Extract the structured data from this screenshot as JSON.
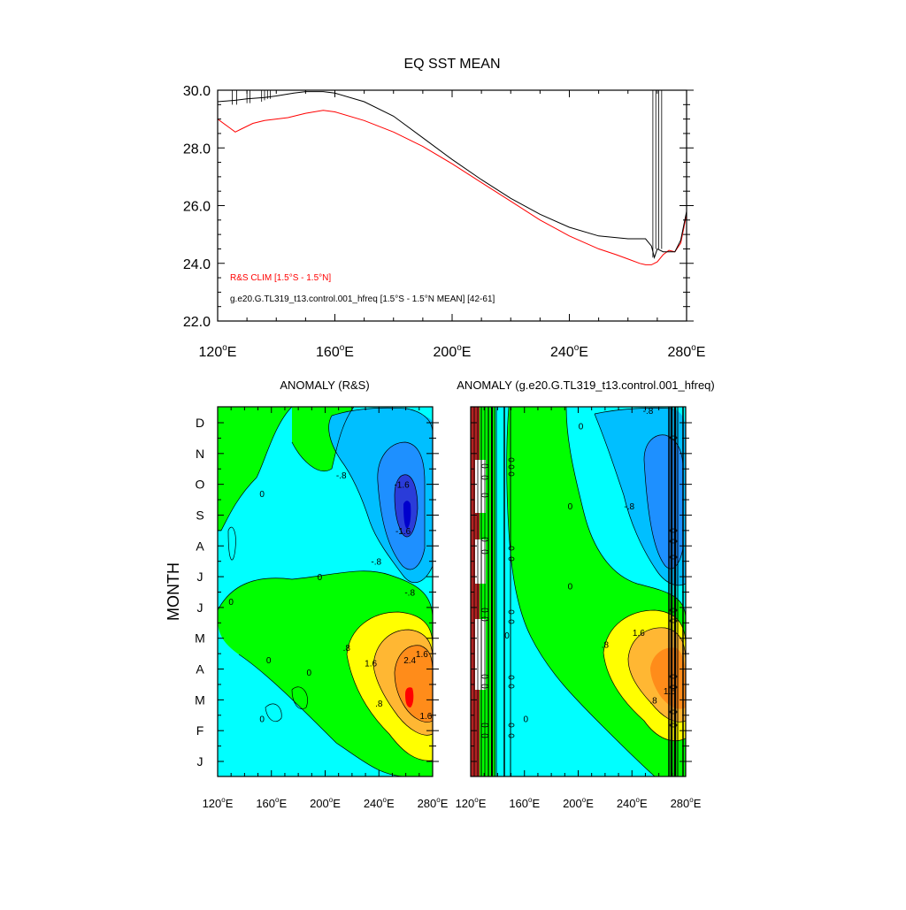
{
  "colors": {
    "obs": "#ff0000",
    "model": "#000000",
    "contour": "#000000",
    "fill_levels": [
      "#2a3cd9",
      "#1e90ff",
      "#00bfff",
      "#00ffff",
      "#00ff00",
      "#ffff00",
      "#ffb733",
      "#ff8c1a",
      "#ff0000"
    ]
  },
  "chart_data": [
    {
      "type": "line",
      "title": "EQ SST MEAN",
      "xlabel": "",
      "ylabel": "",
      "xlim": [
        120,
        280
      ],
      "ylim": [
        22,
        30
      ],
      "x_ticks": [
        120,
        160,
        200,
        240,
        280
      ],
      "x_tick_labels": [
        "120",
        "160",
        "200",
        "240",
        "280"
      ],
      "x_unit_suffix": "°E",
      "y_ticks": [
        22,
        24,
        26,
        28,
        30
      ],
      "y_tick_labels": [
        "22.0",
        "24.0",
        "26.0",
        "28.0",
        "30.0"
      ],
      "legend_location": "bottom-left",
      "series": [
        {
          "name": "R&S CLIM [1.5°S - 1.5°N]",
          "color": "#ff0000",
          "x": [
            120,
            124,
            126,
            128,
            132,
            136,
            140,
            144,
            150,
            156,
            160,
            170,
            180,
            190,
            200,
            210,
            220,
            230,
            240,
            250,
            256,
            260,
            264,
            266,
            268,
            270,
            272,
            274,
            276,
            278,
            280
          ],
          "y": [
            29.0,
            28.7,
            28.55,
            28.65,
            28.85,
            28.95,
            29.0,
            29.05,
            29.2,
            29.3,
            29.25,
            28.95,
            28.55,
            28.05,
            27.45,
            26.8,
            26.15,
            25.5,
            24.95,
            24.5,
            24.3,
            24.15,
            24.0,
            23.95,
            23.95,
            24.05,
            24.3,
            24.45,
            24.4,
            24.7,
            25.7
          ]
        },
        {
          "name": "g.e20.G.TL319_t13.control.001_hfreq [1.5°S - 1.5°N MEAN] [42-61]",
          "color": "#000000",
          "x": [
            120,
            126,
            130,
            136,
            140,
            146,
            150,
            156,
            160,
            170,
            180,
            190,
            200,
            210,
            220,
            230,
            240,
            250,
            260,
            266,
            268,
            269,
            270,
            272,
            276,
            278,
            280
          ],
          "y": [
            29.6,
            29.65,
            29.7,
            29.75,
            29.8,
            29.9,
            29.95,
            29.95,
            29.9,
            29.6,
            29.1,
            28.35,
            27.6,
            26.9,
            26.25,
            25.7,
            25.25,
            24.95,
            24.85,
            24.85,
            24.6,
            24.2,
            24.5,
            24.4,
            24.4,
            24.8,
            25.8
          ]
        }
      ],
      "spikes": [
        {
          "x": 125,
          "y_min": 29.5
        },
        {
          "x": 126.5,
          "y_min": 29.5
        },
        {
          "x": 130,
          "y_min": 29.55
        },
        {
          "x": 131,
          "y_min": 29.55
        },
        {
          "x": 135,
          "y_min": 29.6
        },
        {
          "x": 136,
          "y_min": 29.65
        },
        {
          "x": 137,
          "y_min": 29.7
        },
        {
          "x": 138,
          "y_min": 29.7
        },
        {
          "x": 268.5,
          "y_min": 24.2
        },
        {
          "x": 269.5,
          "y_min": 24.5
        },
        {
          "x": 270.5,
          "y_min": 24.5
        },
        {
          "x": 271.5,
          "y_min": 24.5
        }
      ]
    },
    {
      "type": "heatmap",
      "title": "ANOMALY (R&S)",
      "xlim": [
        120,
        280
      ],
      "x_ticks": [
        120,
        160,
        200,
        240,
        280
      ],
      "x_tick_labels": [
        "120",
        "160",
        "200",
        "240",
        "280"
      ],
      "x_unit_suffix": "°E",
      "ylabel": "MONTH",
      "months": [
        "J",
        "F",
        "M",
        "A",
        "M",
        "J",
        "J",
        "A",
        "S",
        "O",
        "N",
        "D"
      ],
      "contour_labels": [
        {
          "text": "0",
          "lon": 145,
          "mon": 11.7
        },
        {
          "text": "-.8",
          "lon": 235,
          "mon": 11.8
        },
        {
          "text": "0",
          "lon": 153,
          "mon": 8.7
        },
        {
          "text": "-.8",
          "lon": 212,
          "mon": 9.3
        },
        {
          "text": "-1.6",
          "lon": 257,
          "mon": 9.0
        },
        {
          "text": "-1.6",
          "lon": 258,
          "mon": 7.5
        },
        {
          "text": "-.8",
          "lon": 263,
          "mon": 5.5
        },
        {
          "text": "-.8",
          "lon": 238,
          "mon": 6.5
        },
        {
          "text": "0",
          "lon": 196,
          "mon": 6.0
        },
        {
          "text": "0",
          "lon": 130,
          "mon": 5.2
        },
        {
          "text": "0",
          "lon": 158,
          "mon": 3.3
        },
        {
          "text": ".8",
          "lon": 216,
          "mon": 3.7
        },
        {
          "text": "1.6",
          "lon": 234,
          "mon": 3.2
        },
        {
          "text": "2.4",
          "lon": 263,
          "mon": 3.3
        },
        {
          "text": "1.6",
          "lon": 272,
          "mon": 3.5
        },
        {
          "text": ".8",
          "lon": 240,
          "mon": 1.9
        },
        {
          "text": "1.6",
          "lon": 275,
          "mon": 1.5
        },
        {
          "text": "0",
          "lon": 188,
          "mon": 2.9
        },
        {
          "text": "0",
          "lon": 153,
          "mon": 1.4
        }
      ]
    },
    {
      "type": "heatmap",
      "title": "ANOMALY (g.e20.G.TL319_t13.control.001_hfreq)",
      "xlim": [
        120,
        280
      ],
      "x_ticks": [
        120,
        160,
        200,
        240,
        280
      ],
      "x_tick_labels": [
        "120",
        "160",
        "200",
        "240",
        "280"
      ],
      "x_unit_suffix": "°E",
      "months": [
        "J",
        "F",
        "M",
        "A",
        "M",
        "J",
        "J",
        "A",
        "S",
        "O",
        "N",
        "D"
      ],
      "contour_labels": [
        {
          "text": "0",
          "lon": 202,
          "mon": 10.9
        },
        {
          "text": "-.8",
          "lon": 252,
          "mon": 11.4
        },
        {
          "text": "0",
          "lon": 194,
          "mon": 8.3
        },
        {
          "text": "-.8",
          "lon": 238,
          "mon": 8.3
        },
        {
          "text": "0",
          "lon": 194,
          "mon": 5.7
        },
        {
          "text": "0",
          "lon": 147,
          "mon": 4.1
        },
        {
          "text": ".8",
          "lon": 220,
          "mon": 3.8
        },
        {
          "text": "1.6",
          "lon": 245,
          "mon": 4.2
        },
        {
          "text": ".8",
          "lon": 256,
          "mon": 2.0
        },
        {
          "text": "1.6",
          "lon": 268,
          "mon": 2.3
        },
        {
          "text": "0",
          "lon": 161,
          "mon": 1.4
        }
      ]
    }
  ]
}
